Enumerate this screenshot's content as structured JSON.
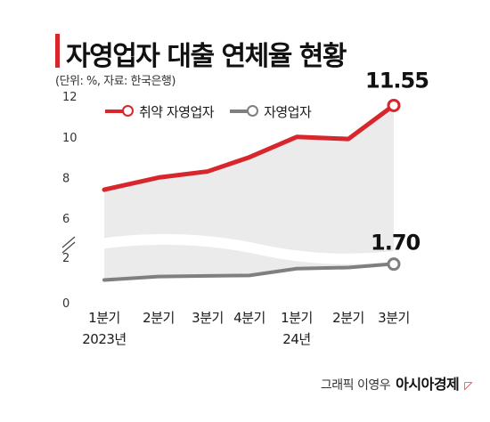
{
  "title": "자영업자 대출 연체율 현황",
  "unit_note": "(단위: %, 자료: 한국은행)",
  "credit": {
    "byline": "그래픽 이영우",
    "brand": "아시아경제",
    "mark": "◸"
  },
  "colors": {
    "vulnerable": "#d7262c",
    "self_employed": "#7f7f7f",
    "area": "#ebebeb"
  },
  "chart_data": {
    "type": "line",
    "categories": [
      "1분기",
      "2분기",
      "3분기",
      "4분기",
      "1분기",
      "2분기",
      "3분기"
    ],
    "category_sublabels": [
      "2023년",
      "",
      "",
      "",
      "24년",
      "",
      ""
    ],
    "y_ticks": [
      "0",
      "2",
      "6",
      "8",
      "10",
      "12"
    ],
    "axis_break": "between 2 and 6",
    "series": [
      {
        "name": "취약 자영업자",
        "values": [
          7.4,
          8.0,
          8.3,
          9.0,
          10.0,
          9.9,
          11.55
        ],
        "end_label": "11.55"
      },
      {
        "name": "자영업자",
        "values": [
          1.0,
          1.15,
          1.18,
          1.2,
          1.5,
          1.55,
          1.7
        ],
        "end_label": "1.70"
      }
    ],
    "grid": false,
    "legend": "top-left"
  }
}
